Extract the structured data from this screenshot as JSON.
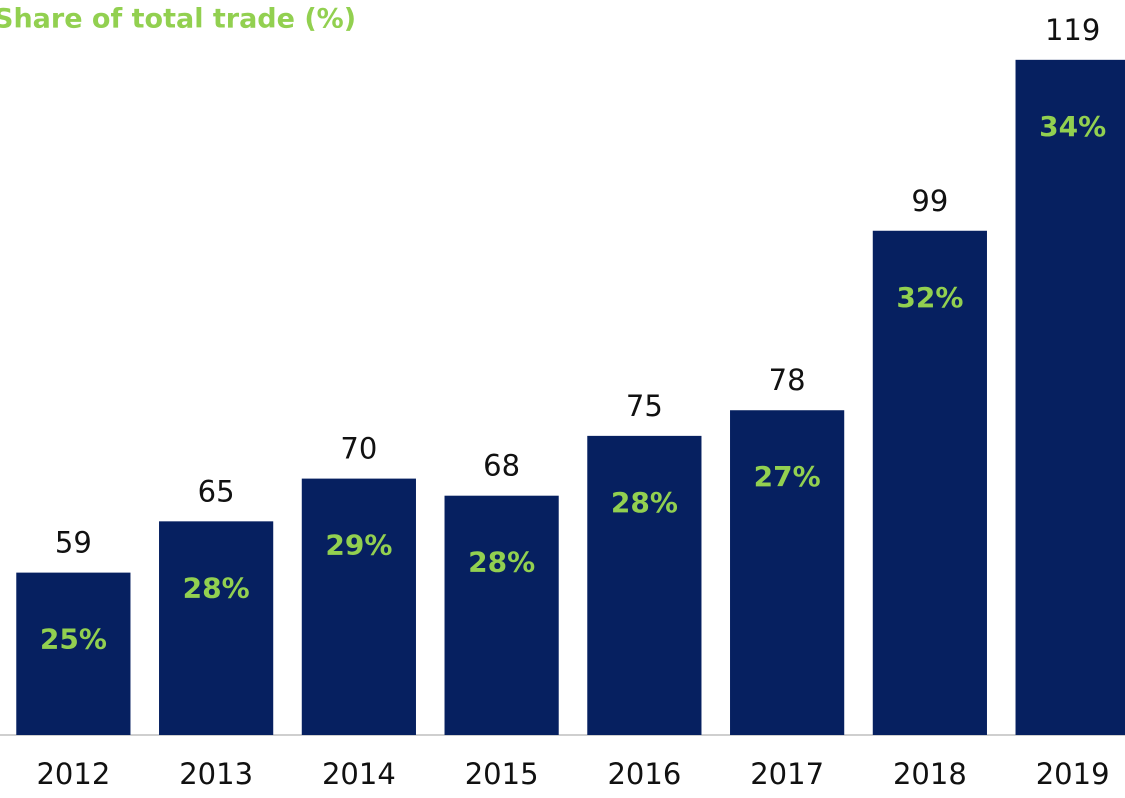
{
  "chart_data": {
    "type": "bar",
    "title": "Share of total trade (%)",
    "categories": [
      "2012",
      "2013",
      "2014",
      "2015",
      "2016",
      "2017",
      "2018",
      "2019"
    ],
    "values": [
      59,
      65,
      70,
      68,
      75,
      78,
      99,
      119
    ],
    "shares": [
      25,
      28,
      29,
      28,
      28,
      27,
      32,
      34
    ],
    "share_labels": [
      "25%",
      "28%",
      "29%",
      "28%",
      "28%",
      "27%",
      "32%",
      "34%"
    ],
    "color": "#062060",
    "share_color": "#92d050",
    "ylim": [
      40,
      126
    ]
  }
}
